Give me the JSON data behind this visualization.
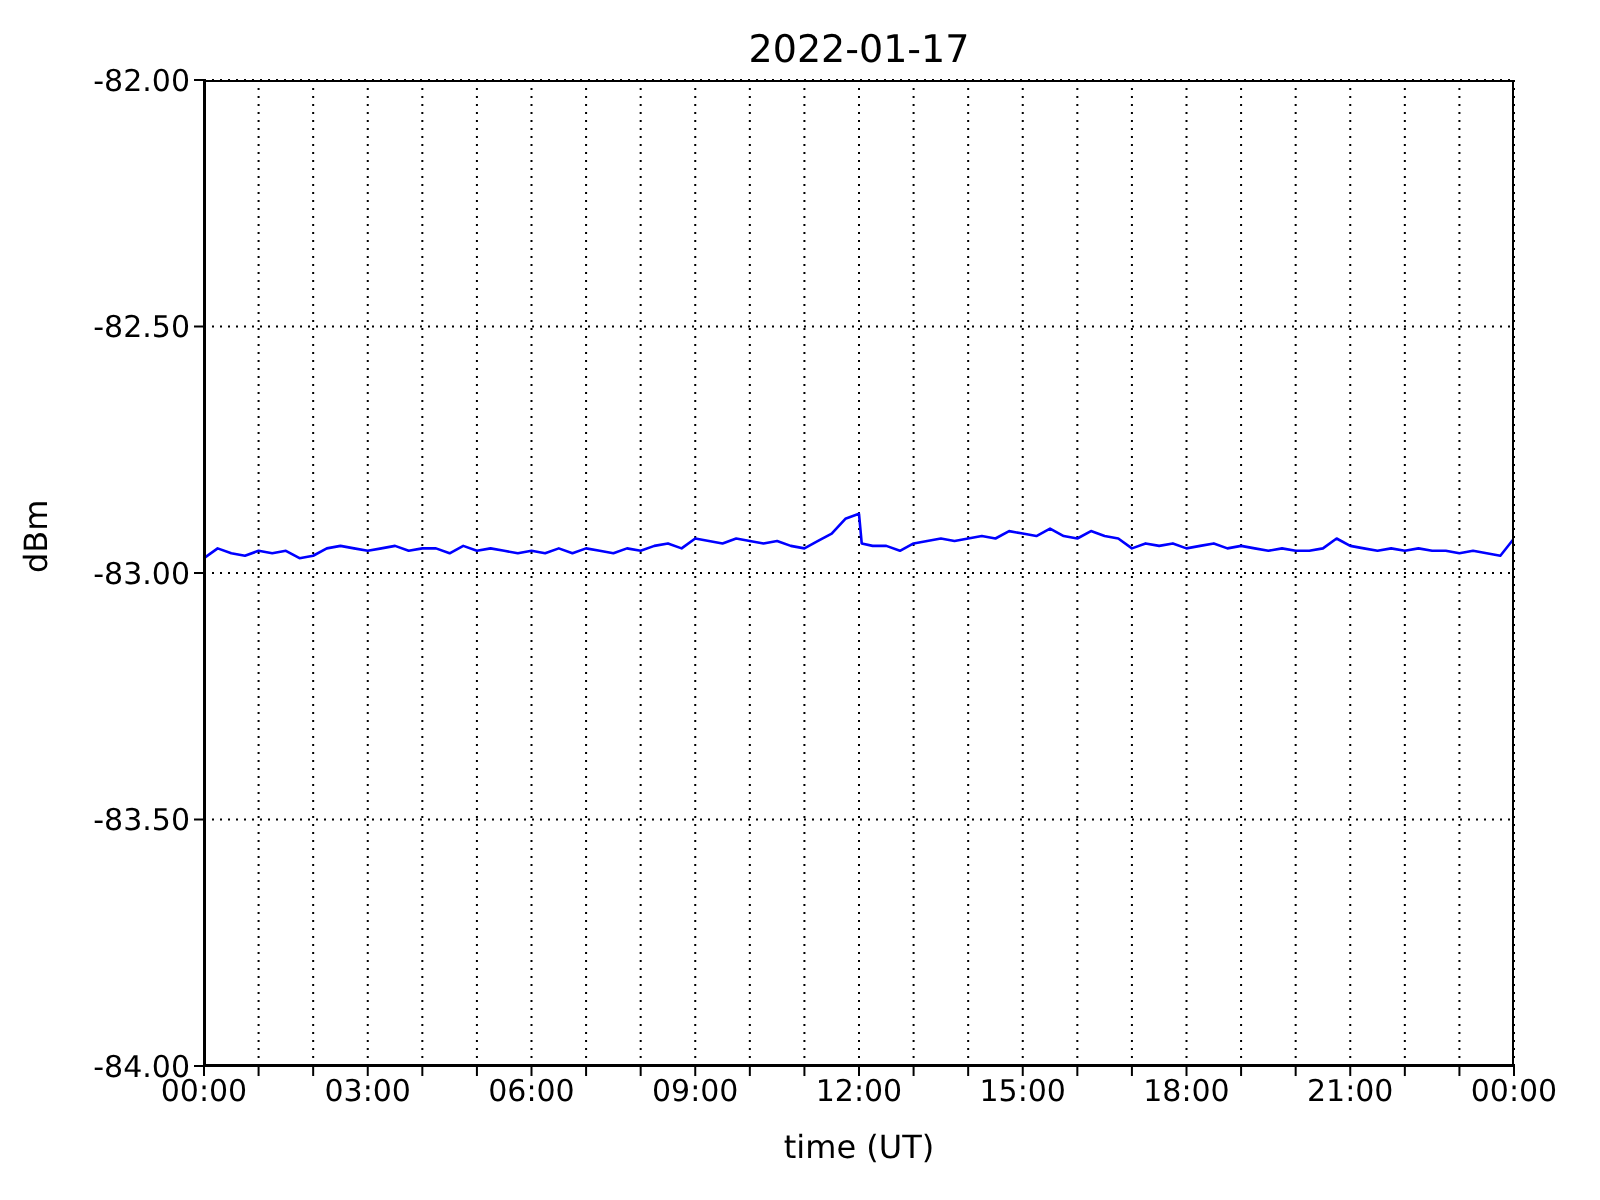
{
  "chart_data": {
    "type": "line",
    "title": "2022-01-17",
    "xlabel": "time (UT)",
    "ylabel": "dBm",
    "x": [
      0,
      0.25,
      0.5,
      0.75,
      1,
      1.25,
      1.5,
      1.75,
      2,
      2.25,
      2.5,
      2.75,
      3,
      3.25,
      3.5,
      3.75,
      4,
      4.25,
      4.5,
      4.75,
      5,
      5.25,
      5.5,
      5.75,
      6,
      6.25,
      6.5,
      6.75,
      7,
      7.25,
      7.5,
      7.75,
      8,
      8.25,
      8.5,
      8.75,
      9,
      9.25,
      9.5,
      9.75,
      10,
      10.25,
      10.5,
      10.75,
      11,
      11.25,
      11.5,
      11.75,
      12,
      12.05,
      12.25,
      12.5,
      12.75,
      13,
      13.25,
      13.5,
      13.75,
      14,
      14.25,
      14.5,
      14.75,
      15,
      15.25,
      15.5,
      15.75,
      16,
      16.25,
      16.5,
      16.75,
      17,
      17.25,
      17.5,
      17.75,
      18,
      18.25,
      18.5,
      18.75,
      19,
      19.25,
      19.5,
      19.75,
      20,
      20.25,
      20.5,
      20.75,
      21,
      21.25,
      21.5,
      21.75,
      22,
      22.25,
      22.5,
      22.75,
      23,
      23.25,
      23.5,
      23.75,
      24
    ],
    "series": [
      {
        "color": "#0000ff",
        "values": [
          -82.97,
          -82.95,
          -82.96,
          -82.965,
          -82.955,
          -82.96,
          -82.955,
          -82.97,
          -82.965,
          -82.95,
          -82.945,
          -82.95,
          -82.955,
          -82.95,
          -82.945,
          -82.955,
          -82.95,
          -82.95,
          -82.96,
          -82.945,
          -82.955,
          -82.95,
          -82.955,
          -82.96,
          -82.955,
          -82.96,
          -82.95,
          -82.96,
          -82.95,
          -82.955,
          -82.96,
          -82.95,
          -82.955,
          -82.945,
          -82.94,
          -82.95,
          -82.93,
          -82.935,
          -82.94,
          -82.93,
          -82.935,
          -82.94,
          -82.935,
          -82.945,
          -82.95,
          -82.935,
          -82.92,
          -82.89,
          -82.88,
          -82.94,
          -82.945,
          -82.945,
          -82.955,
          -82.94,
          -82.935,
          -82.93,
          -82.935,
          -82.93,
          -82.925,
          -82.93,
          -82.915,
          -82.92,
          -82.925,
          -82.91,
          -82.925,
          -82.93,
          -82.915,
          -82.925,
          -82.93,
          -82.95,
          -82.94,
          -82.945,
          -82.94,
          -82.95,
          -82.945,
          -82.94,
          -82.95,
          -82.945,
          -82.95,
          -82.955,
          -82.95,
          -82.955,
          -82.955,
          -82.95,
          -82.93,
          -82.945,
          -82.95,
          -82.955,
          -82.95,
          -82.955,
          -82.95,
          -82.955,
          -82.955,
          -82.96,
          -82.955,
          -82.96,
          -82.965,
          -82.93
        ]
      }
    ],
    "xlim": [
      0,
      24
    ],
    "xticks": [
      {
        "value": 0,
        "label": "00:00"
      },
      {
        "value": 1,
        "label": null
      },
      {
        "value": 2,
        "label": null
      },
      {
        "value": 3,
        "label": "03:00"
      },
      {
        "value": 4,
        "label": null
      },
      {
        "value": 5,
        "label": null
      },
      {
        "value": 6,
        "label": "06:00"
      },
      {
        "value": 7,
        "label": null
      },
      {
        "value": 8,
        "label": null
      },
      {
        "value": 9,
        "label": "09:00"
      },
      {
        "value": 10,
        "label": null
      },
      {
        "value": 11,
        "label": null
      },
      {
        "value": 12,
        "label": "12:00"
      },
      {
        "value": 13,
        "label": null
      },
      {
        "value": 14,
        "label": null
      },
      {
        "value": 15,
        "label": "15:00"
      },
      {
        "value": 16,
        "label": null
      },
      {
        "value": 17,
        "label": null
      },
      {
        "value": 18,
        "label": "18:00"
      },
      {
        "value": 19,
        "label": null
      },
      {
        "value": 20,
        "label": null
      },
      {
        "value": 21,
        "label": "21:00"
      },
      {
        "value": 22,
        "label": null
      },
      {
        "value": 23,
        "label": null
      },
      {
        "value": 24,
        "label": "00:00"
      }
    ],
    "ylim": [
      -84,
      -82
    ],
    "yticks": [
      {
        "value": -84,
        "label": "-84.00"
      },
      {
        "value": -83.5,
        "label": "-83.50"
      },
      {
        "value": -83,
        "label": "-83.00"
      },
      {
        "value": -82.5,
        "label": "-82.50"
      },
      {
        "value": -82,
        "label": "-82.00"
      }
    ],
    "grid": true,
    "legend": false,
    "marker": "none",
    "line_style": "solid"
  }
}
